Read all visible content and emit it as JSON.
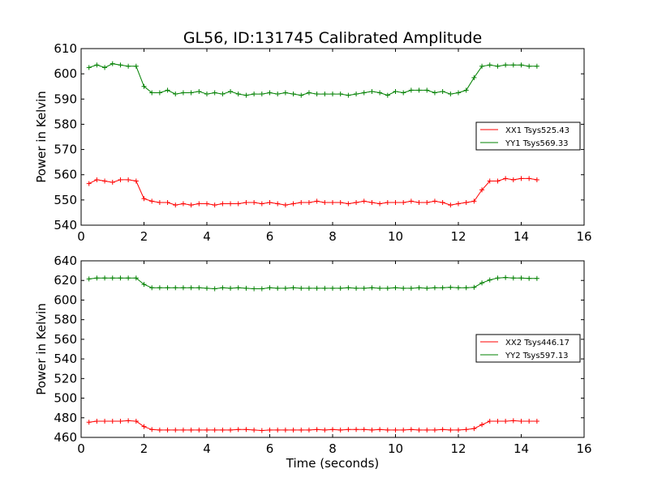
{
  "page": {
    "title": "GL56, ID:131745 Calibrated Amplitude"
  },
  "chart_data": [
    {
      "type": "line",
      "title": "GL56, ID:131745 Calibrated Amplitude",
      "xlabel": "",
      "ylabel": "Power in Kelvin",
      "xlim": [
        0,
        16
      ],
      "ylim": [
        540,
        610
      ],
      "xticks": [
        "0",
        "2",
        "4",
        "6",
        "8",
        "10",
        "12",
        "14",
        "16"
      ],
      "yticks": [
        "540",
        "550",
        "560",
        "570",
        "580",
        "590",
        "600",
        "610"
      ],
      "legend_position": "right",
      "marker": "plus",
      "x": [
        0.25,
        0.5,
        0.75,
        1.0,
        1.25,
        1.5,
        1.75,
        2.0,
        2.25,
        2.5,
        2.75,
        3.0,
        3.25,
        3.5,
        3.75,
        4.0,
        4.25,
        4.5,
        4.75,
        5.0,
        5.25,
        5.5,
        5.75,
        6.0,
        6.25,
        6.5,
        6.75,
        7.0,
        7.25,
        7.5,
        7.75,
        8.0,
        8.25,
        8.5,
        8.75,
        9.0,
        9.25,
        9.5,
        9.75,
        10.0,
        10.25,
        10.5,
        10.75,
        11.0,
        11.25,
        11.5,
        11.75,
        12.0,
        12.25,
        12.5,
        12.75,
        13.0,
        13.25,
        13.5,
        13.75,
        14.0,
        14.25,
        14.5
      ],
      "series": [
        {
          "name": "XX1 Tsys525.43",
          "color": "#ff0000",
          "values": [
            556.5,
            558.0,
            557.5,
            557.0,
            558.0,
            558.0,
            557.5,
            550.5,
            549.5,
            549.0,
            549.0,
            548.0,
            548.5,
            548.0,
            548.5,
            548.5,
            548.0,
            548.5,
            548.5,
            548.5,
            549.0,
            549.0,
            548.5,
            549.0,
            548.5,
            548.0,
            548.5,
            549.0,
            549.0,
            549.5,
            549.0,
            549.0,
            549.0,
            548.5,
            549.0,
            549.5,
            549.0,
            548.5,
            549.0,
            549.0,
            549.0,
            549.5,
            549.0,
            549.0,
            549.5,
            549.0,
            548.0,
            548.5,
            549.0,
            549.5,
            554.0,
            557.5,
            557.5,
            558.5,
            558.0,
            558.5,
            558.5,
            558.0
          ]
        },
        {
          "name": "YY1 Tsys569.33",
          "color": "#008000",
          "values": [
            602.5,
            603.5,
            602.5,
            604.0,
            603.5,
            603.0,
            603.0,
            595.0,
            592.5,
            592.5,
            593.5,
            592.0,
            592.5,
            592.5,
            593.0,
            592.0,
            592.5,
            592.0,
            593.0,
            592.0,
            591.5,
            592.0,
            592.0,
            592.5,
            592.0,
            592.5,
            592.0,
            591.5,
            592.5,
            592.0,
            592.0,
            592.0,
            592.0,
            591.5,
            592.0,
            592.5,
            593.0,
            592.5,
            591.5,
            593.0,
            592.5,
            593.5,
            593.5,
            593.5,
            592.5,
            593.0,
            592.0,
            592.5,
            593.5,
            598.5,
            603.0,
            603.5,
            603.0,
            603.5,
            603.5,
            603.5,
            603.0,
            603.0
          ]
        }
      ]
    },
    {
      "type": "line",
      "title": "",
      "xlabel": "Time (seconds)",
      "ylabel": "Power in Kelvin",
      "xlim": [
        0,
        16
      ],
      "ylim": [
        460,
        640
      ],
      "xticks": [
        "0",
        "2",
        "4",
        "6",
        "8",
        "10",
        "12",
        "14",
        "16"
      ],
      "yticks": [
        "460",
        "480",
        "500",
        "520",
        "540",
        "560",
        "580",
        "600",
        "620",
        "640"
      ],
      "legend_position": "right",
      "marker": "plus",
      "x": [
        0.25,
        0.5,
        0.75,
        1.0,
        1.25,
        1.5,
        1.75,
        2.0,
        2.25,
        2.5,
        2.75,
        3.0,
        3.25,
        3.5,
        3.75,
        4.0,
        4.25,
        4.5,
        4.75,
        5.0,
        5.25,
        5.5,
        5.75,
        6.0,
        6.25,
        6.5,
        6.75,
        7.0,
        7.25,
        7.5,
        7.75,
        8.0,
        8.25,
        8.5,
        8.75,
        9.0,
        9.25,
        9.5,
        9.75,
        10.0,
        10.25,
        10.5,
        10.75,
        11.0,
        11.25,
        11.5,
        11.75,
        12.0,
        12.25,
        12.5,
        12.75,
        13.0,
        13.25,
        13.5,
        13.75,
        14.0,
        14.25,
        14.5
      ],
      "series": [
        {
          "name": "XX2 Tsys446.17",
          "color": "#ff0000",
          "values": [
            475.5,
            476.5,
            476.5,
            476.5,
            476.5,
            477.0,
            476.5,
            471.0,
            468.0,
            467.5,
            467.5,
            467.5,
            467.5,
            467.5,
            467.5,
            467.5,
            467.5,
            467.5,
            467.5,
            468.0,
            468.0,
            467.5,
            467.0,
            467.5,
            467.5,
            467.5,
            467.5,
            467.5,
            467.5,
            468.0,
            467.5,
            468.0,
            467.5,
            468.0,
            468.0,
            468.0,
            467.5,
            468.0,
            467.5,
            467.5,
            467.5,
            468.0,
            467.5,
            467.5,
            467.5,
            468.0,
            467.5,
            467.5,
            468.0,
            469.0,
            473.0,
            476.5,
            476.5,
            476.5,
            477.0,
            476.5,
            476.5,
            476.5
          ]
        },
        {
          "name": "YY2 Tsys597.13",
          "color": "#008000",
          "values": [
            621.5,
            622.5,
            622.5,
            622.5,
            622.5,
            622.5,
            622.5,
            616.0,
            612.5,
            612.5,
            612.5,
            612.5,
            612.5,
            612.5,
            612.5,
            612.0,
            611.5,
            612.5,
            612.0,
            612.5,
            612.0,
            611.5,
            611.5,
            612.5,
            612.0,
            612.0,
            612.5,
            612.0,
            612.0,
            612.0,
            612.0,
            612.0,
            612.0,
            612.5,
            612.0,
            612.0,
            612.5,
            612.0,
            612.0,
            612.5,
            612.0,
            612.0,
            612.5,
            612.0,
            612.5,
            612.5,
            613.0,
            612.5,
            612.5,
            613.0,
            617.5,
            620.5,
            622.5,
            623.0,
            622.5,
            622.5,
            622.0,
            622.0
          ]
        }
      ]
    }
  ]
}
